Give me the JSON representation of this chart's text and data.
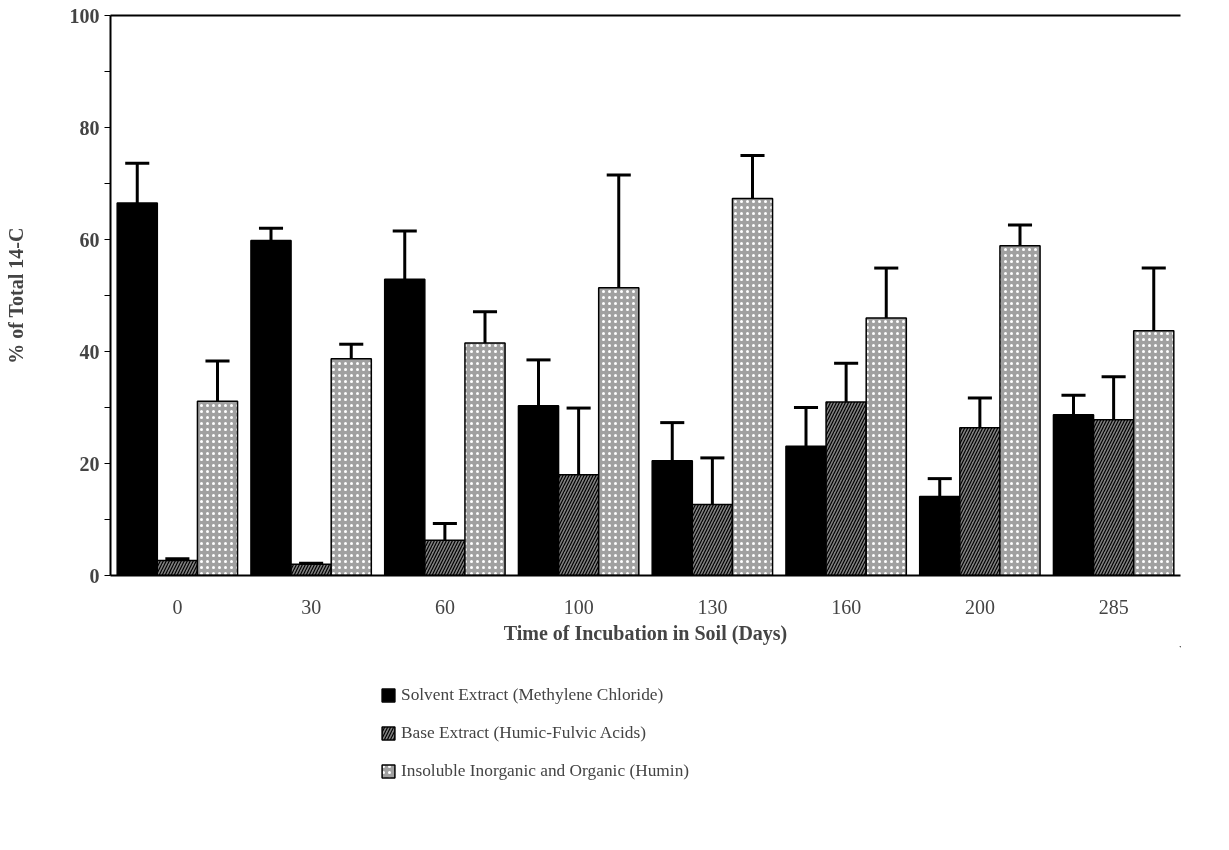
{
  "chart_data": {
    "type": "bar",
    "xlabel": "Time of Incubation in Soil (Days)",
    "ylabel": "% of Total 14-C",
    "categories": [
      "0",
      "30",
      "60",
      "100",
      "130",
      "160",
      "200",
      "285"
    ],
    "series": [
      {
        "name": "Solvent Extract (Methylene Chloride)",
        "color": "#000000",
        "values": [
          66.5,
          59.8,
          52.9,
          30.3,
          20.5,
          23.1,
          14.1,
          28.7
        ],
        "errors": [
          [
            66.5,
            73.6
          ],
          [
            59.8,
            62.0
          ],
          [
            52.9,
            61.5
          ],
          [
            30.3,
            38.5
          ],
          [
            20.5,
            27.3
          ],
          [
            23.1,
            30.0
          ],
          [
            14.1,
            17.3
          ],
          [
            28.7,
            32.2
          ]
        ]
      },
      {
        "name": "Base Extract (Humic-Fulvic Acids)",
        "color": "#808080",
        "values": [
          2.7,
          2.0,
          6.3,
          18.0,
          12.7,
          31.0,
          26.4,
          27.8
        ],
        "errors": [
          [
            2.7,
            3.0
          ],
          [
            2.0,
            2.2
          ],
          [
            6.3,
            9.3
          ],
          [
            18.0,
            29.9
          ],
          [
            12.7,
            21.0
          ],
          [
            31.0,
            37.9
          ],
          [
            26.4,
            31.7
          ],
          [
            27.8,
            35.5
          ]
        ]
      },
      {
        "name": "Insoluble Inorganic and Organic (Humin)",
        "color": "#a0a0a0",
        "values": [
          31.1,
          38.7,
          41.5,
          51.4,
          67.3,
          46.0,
          58.9,
          43.7
        ],
        "errors": [
          [
            31.1,
            38.3
          ],
          [
            38.7,
            41.3
          ],
          [
            41.5,
            47.1
          ],
          [
            51.4,
            71.5
          ],
          [
            67.3,
            75.0
          ],
          [
            46.0,
            54.9
          ],
          [
            58.9,
            62.6
          ],
          [
            43.7,
            54.9
          ]
        ]
      }
    ],
    "ylim": [
      0,
      100
    ],
    "yticks": [
      0,
      {
        "value": 10,
        "label": null
      },
      20,
      {
        "value": 30,
        "label": null
      },
      40,
      {
        "value": 50,
        "label": null
      },
      60,
      {
        "value": 70,
        "label": null
      },
      80,
      {
        "value": 90,
        "label": null
      },
      100
    ],
    "grid": false,
    "legend": "bottom"
  }
}
